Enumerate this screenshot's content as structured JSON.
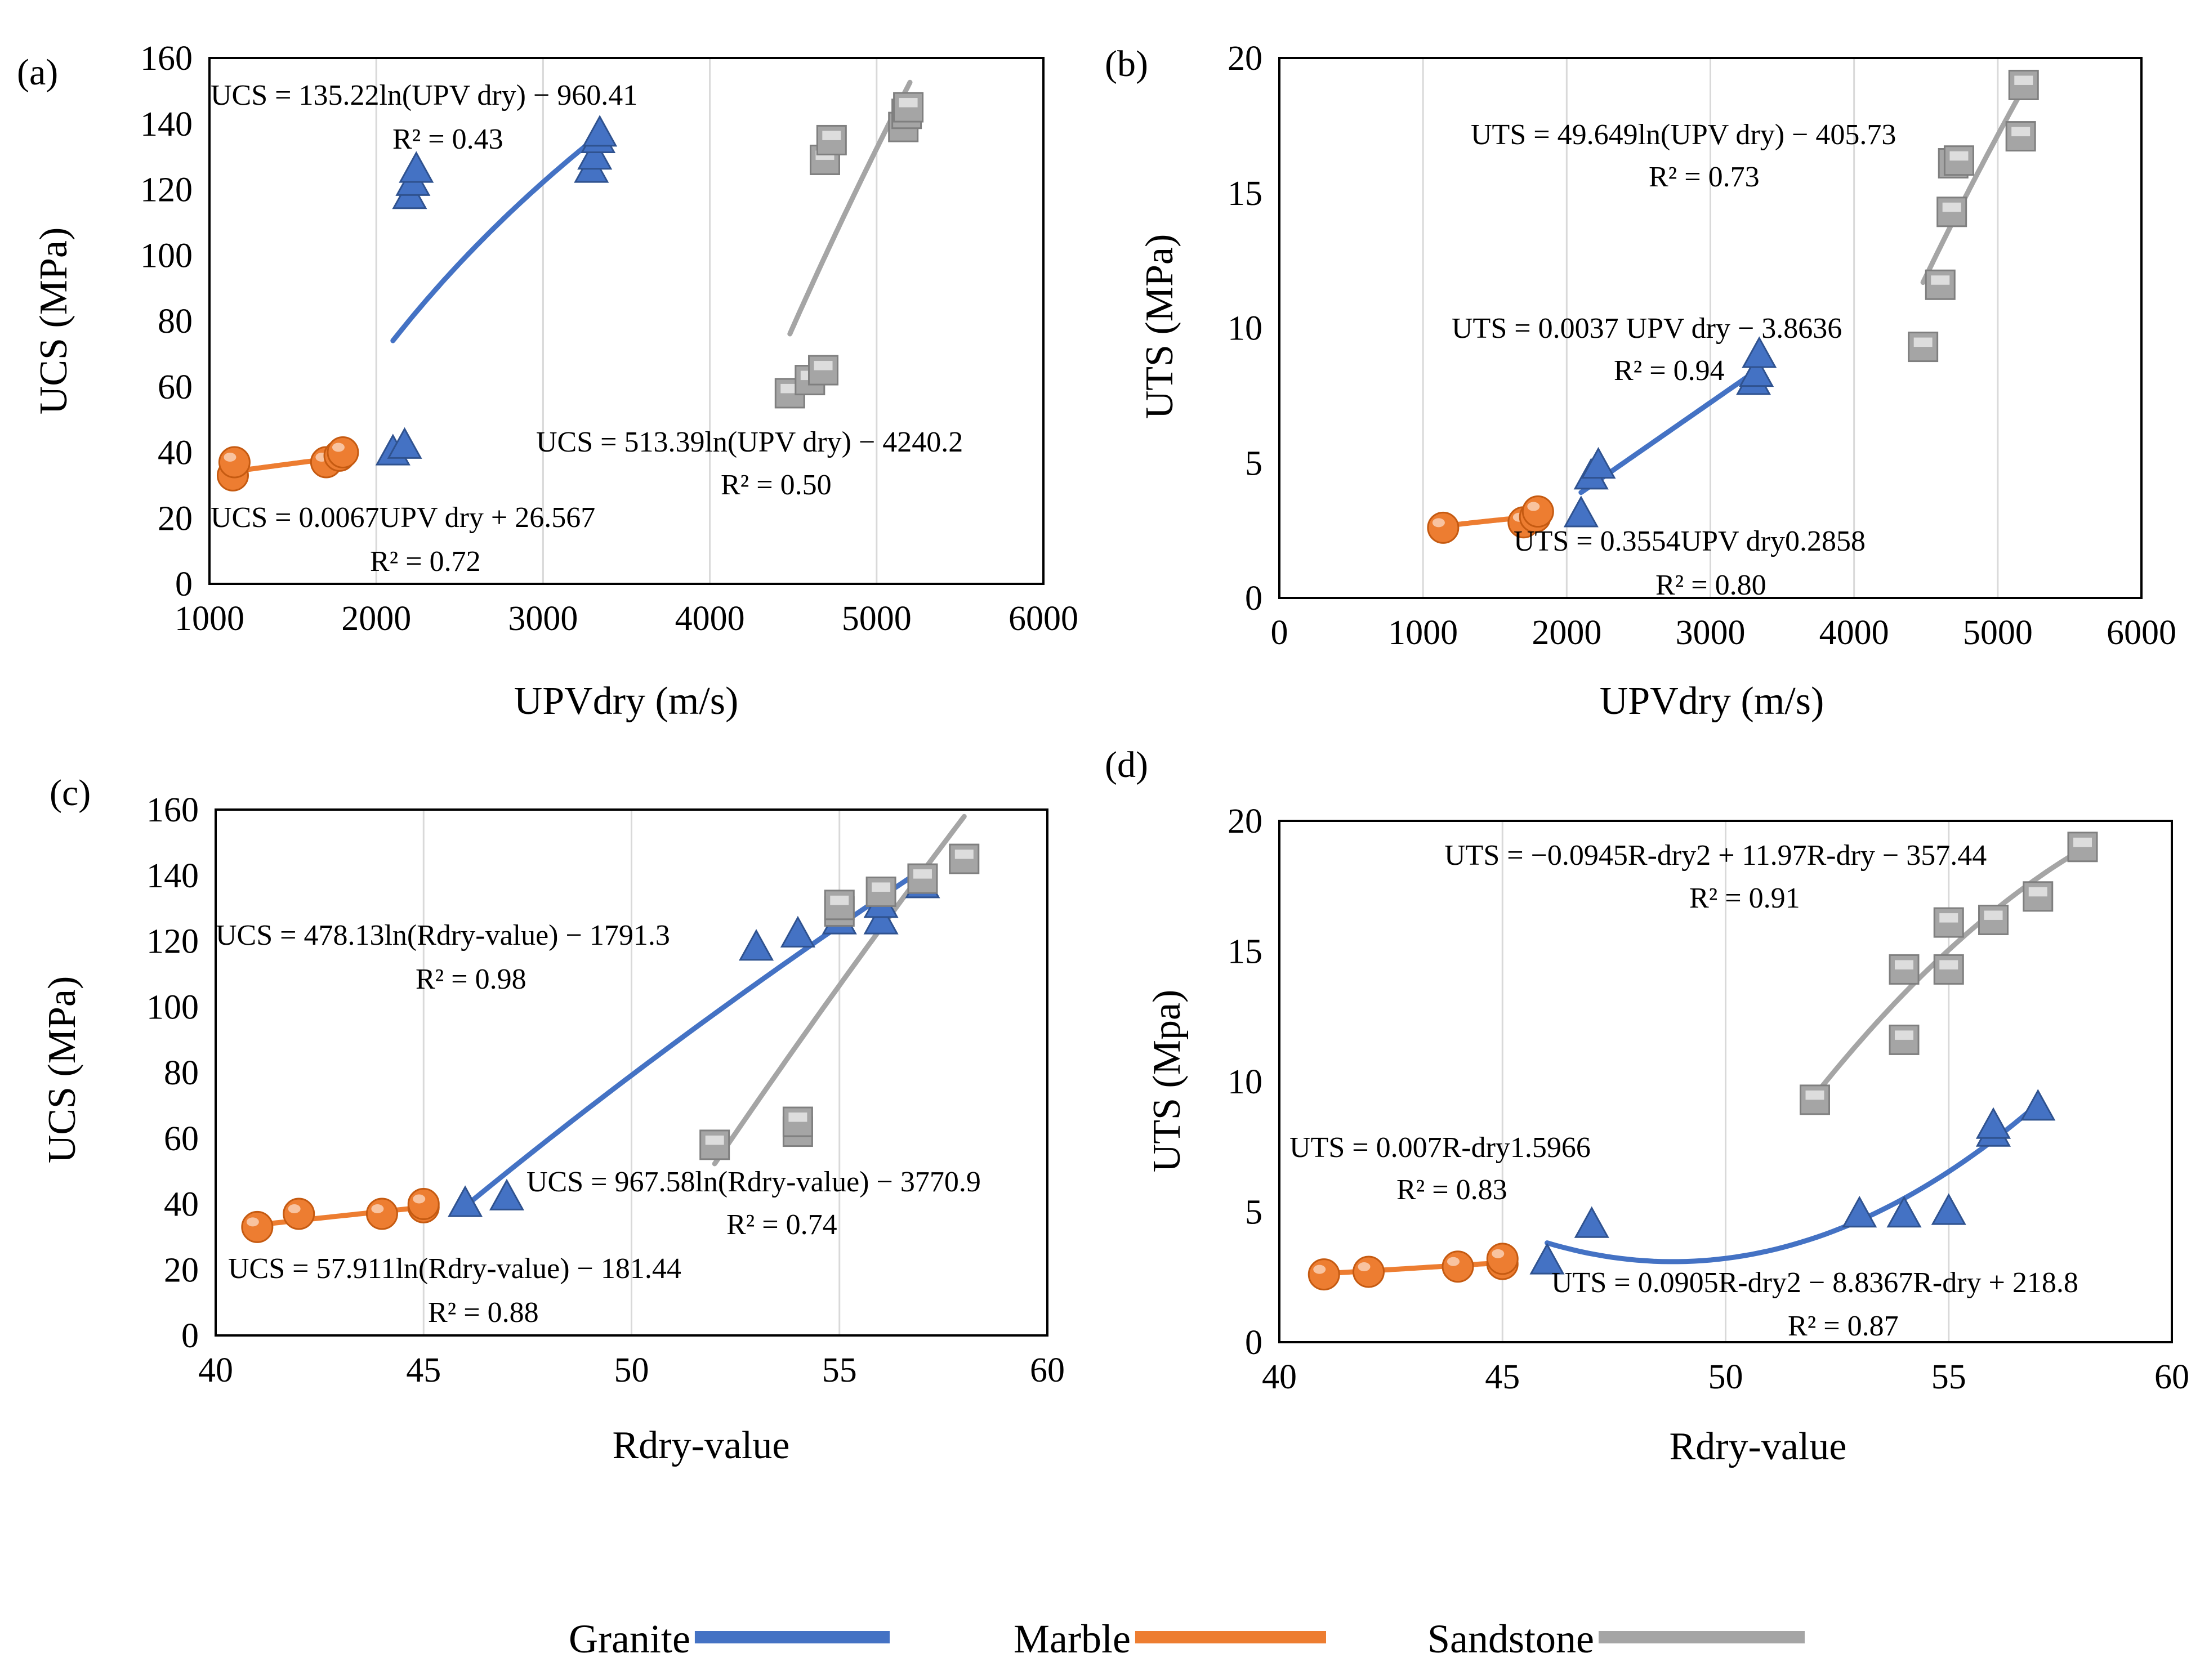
{
  "legend": [
    {
      "name": "Granite",
      "color": "#4472C4"
    },
    {
      "name": "Marble",
      "color": "#ED7D31"
    },
    {
      "name": "Sandstone",
      "color": "#A5A5A5"
    }
  ],
  "chart_data": [
    {
      "type": "scatter",
      "panel": "(a)",
      "xlabel": "UPVdry (m/s)",
      "ylabel": "UCS (MPa)",
      "xlim": [
        1000,
        6000
      ],
      "ylim": [
        0,
        160
      ],
      "xticks": [
        1000,
        2000,
        3000,
        4000,
        5000,
        6000
      ],
      "yticks": [
        0,
        20,
        40,
        60,
        80,
        100,
        120,
        140,
        160
      ],
      "series": [
        {
          "name": "Granite",
          "marker": "triangle",
          "x": [
            2100,
            2170,
            2200,
            2220,
            2240,
            3290,
            3310,
            3330,
            3340
          ],
          "y": [
            40,
            42,
            118,
            122,
            126,
            126,
            130,
            135,
            137
          ],
          "fit": {
            "kind": "log",
            "a": 135.22,
            "b": -960.41,
            "xrange": [
              2100,
              3340
            ]
          },
          "equation": "UCS = 135.22ln(UPV dry) − 960.41",
          "r2": "R² = 0.43"
        },
        {
          "name": "Marble",
          "marker": "circle",
          "x": [
            1140,
            1150,
            1700,
            1780,
            1800
          ],
          "y": [
            33,
            37,
            37,
            39,
            40
          ],
          "fit": {
            "kind": "linear",
            "m": 0.0067,
            "c": 26.567,
            "xrange": [
              1140,
              1800
            ]
          },
          "equation": "UCS = 0.0067UPV dry + 26.567",
          "r2": "R² = 0.72"
        },
        {
          "name": "Sandstone",
          "marker": "square",
          "x": [
            4480,
            4600,
            4680,
            4690,
            4730,
            5160,
            5180,
            5190
          ],
          "y": [
            58,
            62,
            65,
            129,
            135,
            139,
            143,
            145
          ],
          "fit": {
            "kind": "log",
            "a": 513.39,
            "b": -4240.2,
            "xrange": [
              4480,
              5200
            ]
          },
          "equation": "UCS = 513.39ln(UPV dry) − 4240.2",
          "r2": "R² = 0.50"
        }
      ]
    },
    {
      "type": "scatter",
      "panel": "(b)",
      "xlabel": "UPVdry (m/s)",
      "ylabel": "UTS (MPa)",
      "xlim": [
        0,
        6000
      ],
      "ylim": [
        0,
        20
      ],
      "xticks": [
        0,
        1000,
        2000,
        3000,
        4000,
        5000,
        6000
      ],
      "yticks": [
        0,
        5,
        10,
        15,
        20
      ],
      "series": [
        {
          "name": "Granite",
          "marker": "triangle",
          "x": [
            2100,
            2170,
            2220,
            3300,
            3320,
            3340
          ],
          "y": [
            3.1,
            4.5,
            4.9,
            8.0,
            8.3,
            9.0
          ],
          "fit": {
            "kind": "linear",
            "m": 0.0037,
            "c": -3.8636,
            "xrange": [
              2100,
              3340
            ]
          },
          "equation": "UTS = 0.0037 UPV dry − 3.8636",
          "r2": "R² = 0.94"
        },
        {
          "name": "Marble",
          "marker": "circle",
          "x": [
            1140,
            1700,
            1780,
            1800
          ],
          "y": [
            2.6,
            2.8,
            3.0,
            3.2
          ],
          "fit": {
            "kind": "power",
            "a": 0.3554,
            "p": 0.2858,
            "xrange": [
              1140,
              1800
            ]
          },
          "equation": "UTS = 0.3554UPV dry0.2858",
          "r2": "R² = 0.80"
        },
        {
          "name": "Sandstone",
          "marker": "square",
          "x": [
            4480,
            4600,
            4680,
            4690,
            4730,
            5160,
            5180
          ],
          "y": [
            9.3,
            11.6,
            14.3,
            16.1,
            16.2,
            17.1,
            19.0
          ],
          "fit": {
            "kind": "log",
            "a": 49.649,
            "b": -405.73,
            "xrange": [
              4480,
              5200
            ]
          },
          "equation": "UTS = 49.649ln(UPV dry) − 405.73",
          "r2": "R² = 0.73"
        }
      ]
    },
    {
      "type": "scatter",
      "panel": "(c)",
      "xlabel": "Rdry-value",
      "ylabel": "UCS (MPa)",
      "xlim": [
        40,
        60
      ],
      "ylim": [
        0,
        160
      ],
      "xticks": [
        40,
        45,
        50,
        55,
        60
      ],
      "yticks": [
        0,
        20,
        40,
        60,
        80,
        100,
        120,
        140,
        160
      ],
      "series": [
        {
          "name": "Granite",
          "marker": "triangle",
          "x": [
            46,
            47,
            53,
            54,
            55,
            56,
            56,
            57
          ],
          "y": [
            40,
            42,
            118,
            122,
            126,
            126,
            131,
            137
          ],
          "fit": {
            "kind": "log",
            "a": 478.13,
            "b": -1791.3,
            "xrange": [
              46,
              57
            ]
          },
          "equation": "UCS = 478.13ln(Rdry-value) − 1791.3",
          "r2": "R² = 0.98"
        },
        {
          "name": "Marble",
          "marker": "circle",
          "x": [
            41,
            42,
            44,
            45,
            45
          ],
          "y": [
            33,
            37,
            37,
            39,
            40
          ],
          "fit": {
            "kind": "log",
            "a": 57.911,
            "b": -181.44,
            "xrange": [
              41,
              45
            ]
          },
          "equation": "UCS = 57.911ln(Rdry-value) − 181.44",
          "r2": "R² = 0.88"
        },
        {
          "name": "Sandstone",
          "marker": "square",
          "x": [
            52,
            54,
            54,
            55,
            55,
            56,
            57,
            58
          ],
          "y": [
            58,
            62,
            65,
            129,
            131,
            135,
            139,
            145
          ],
          "fit": {
            "kind": "log",
            "a": 967.58,
            "b": -3770.9,
            "xrange": [
              52,
              58
            ]
          },
          "equation": "UCS = 967.58ln(Rdry-value) − 3770.9",
          "r2": "R² = 0.74"
        }
      ]
    },
    {
      "type": "scatter",
      "panel": "(d)",
      "xlabel": "Rdry-value",
      "ylabel": "UTS (Mpa)",
      "xlim": [
        40,
        60
      ],
      "ylim": [
        0,
        20
      ],
      "xticks": [
        40,
        45,
        50,
        55,
        60
      ],
      "yticks": [
        0,
        5,
        10,
        15,
        20
      ],
      "series": [
        {
          "name": "Granite",
          "marker": "triangle",
          "x": [
            46,
            47,
            53,
            54,
            55,
            56,
            56,
            57
          ],
          "y": [
            3.1,
            4.5,
            4.9,
            4.9,
            5.0,
            8.0,
            8.3,
            9.0
          ],
          "fit": {
            "kind": "poly2",
            "a": 0.0905,
            "b": -8.8367,
            "c": 218.8,
            "xrange": [
              46,
              57
            ]
          },
          "equation": "UTS = 0.0905R-dry2 − 8.8367R-dry + 218.8",
          "r2": "R² = 0.87"
        },
        {
          "name": "Marble",
          "marker": "circle",
          "x": [
            41,
            42,
            44,
            45,
            45
          ],
          "y": [
            2.6,
            2.7,
            2.9,
            3.0,
            3.2
          ],
          "fit": {
            "kind": "power",
            "a": 0.007,
            "p": 1.5966,
            "xrange": [
              41,
              45
            ]
          },
          "equation": "UTS = 0.007R-dry1.5966",
          "r2": "R² = 0.83"
        },
        {
          "name": "Sandstone",
          "marker": "square",
          "x": [
            52,
            54,
            54,
            55,
            55,
            56,
            57,
            58
          ],
          "y": [
            9.3,
            11.6,
            14.3,
            14.3,
            16.1,
            16.2,
            17.1,
            19.0
          ],
          "fit": {
            "kind": "poly2",
            "a": -0.0945,
            "b": 11.97,
            "c": -357.44,
            "xrange": [
              52,
              58
            ]
          },
          "equation": "UTS = −0.0945R-dry2 + 11.97R-dry − 357.44",
          "r2": "R² = 0.91"
        }
      ]
    }
  ]
}
